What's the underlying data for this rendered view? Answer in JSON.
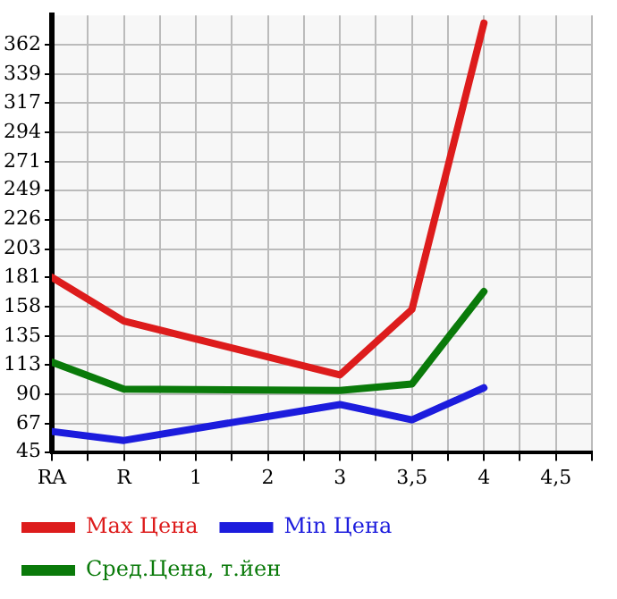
{
  "chart_data": {
    "type": "line",
    "categories": [
      "RA",
      "R",
      "1",
      "2",
      "3",
      "3,5",
      "4",
      "4,5"
    ],
    "series": [
      {
        "name": "Max Цена",
        "color": "#dd1c1c",
        "values": [
          181,
          147,
          null,
          null,
          105,
          156,
          379,
          null
        ]
      },
      {
        "name": "Min Цена",
        "color": "#1c1cdd",
        "values": [
          61,
          54,
          null,
          null,
          82,
          70,
          95,
          null
        ]
      },
      {
        "name": "Сред.Цена, т.йен",
        "color": "#0a7a0a",
        "values": [
          115,
          94,
          null,
          null,
          93,
          98,
          170,
          null
        ]
      }
    ],
    "ylim": [
      45,
      385
    ],
    "yticks": [
      45,
      67,
      90,
      113,
      135,
      158,
      181,
      203,
      226,
      249,
      271,
      294,
      317,
      339,
      362
    ],
    "grid": true,
    "legend": "bottom",
    "marker": "none",
    "line_style": "solid"
  }
}
